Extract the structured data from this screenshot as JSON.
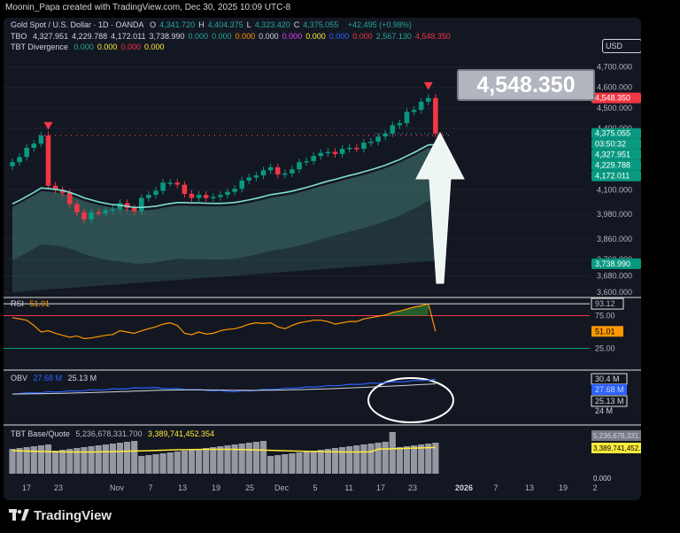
{
  "header": {
    "attribution": "Moonin_Papa created with TradingView.com, Dec 30, 2025 10:09 UTC-8"
  },
  "symbol": {
    "title": "Gold Spot / U.S. Dollar · 1D · OANDA",
    "ohlc": [
      {
        "k": "O",
        "v": "4,341.720"
      },
      {
        "k": "H",
        "v": "4,404.375"
      },
      {
        "k": "L",
        "v": "4,323.420"
      },
      {
        "k": "C",
        "v": "4,375.055"
      }
    ],
    "change": "+42.495 (+0.98%)"
  },
  "legend_tbo": {
    "name": "TBO",
    "values": [
      {
        "v": "4,327.951",
        "color": "#d1d4dc"
      },
      {
        "v": "4,229.788",
        "color": "#d1d4dc"
      },
      {
        "v": "4,172.011",
        "color": "#d1d4dc"
      },
      {
        "v": "3,738.990",
        "color": "#d1d4dc"
      },
      {
        "v": "0.000",
        "color": "#26a69a"
      },
      {
        "v": "0.000",
        "color": "#26a69a"
      },
      {
        "v": "0.000",
        "color": "#ff9800"
      },
      {
        "v": "0.000",
        "color": "#d1d4dc"
      },
      {
        "v": "0.000",
        "color": "#e040fb"
      },
      {
        "v": "0.000",
        "color": "#ffeb3b"
      },
      {
        "v": "0.000",
        "color": "#2962ff"
      },
      {
        "v": "0.000",
        "color": "#f23645"
      },
      {
        "v": "2,567.130",
        "color": "#26a69a"
      },
      {
        "v": "4,548.350",
        "color": "#f23645"
      }
    ]
  },
  "legend_div": {
    "name": "TBT Divergence",
    "values": [
      {
        "v": "0.000",
        "color": "#26a69a"
      },
      {
        "v": "0.000",
        "color": "#ffeb3b"
      },
      {
        "v": "0.000",
        "color": "#f23645"
      },
      {
        "v": "0.000",
        "color": "#ffeb3b"
      }
    ]
  },
  "currency": "USD",
  "annotation_price": "4,548.350",
  "price_axis": {
    "ticks": [
      "4,700.000",
      "4,600.000",
      "4,500.000",
      "4,400.000",
      "4,100.000",
      "3,980.000",
      "3,860.000",
      "3,760.000",
      "3,680.000",
      "3,600.000"
    ],
    "tags": [
      {
        "v": "4,548.350",
        "color": "#f23645"
      },
      {
        "v": "4,375.055",
        "color": "#089981"
      },
      {
        "v": "03:50:32",
        "color": "#089981"
      },
      {
        "v": "4,327.951",
        "color": "#089981"
      },
      {
        "v": "4,229.788",
        "color": "#089981"
      },
      {
        "v": "4,172.011",
        "color": "#089981"
      },
      {
        "v": "3,738.990",
        "color": "#089981"
      }
    ]
  },
  "rsi": {
    "label": "RSI",
    "value": "51.01",
    "axis": [
      "93.12",
      "75.00",
      "51.01",
      "25.00"
    ]
  },
  "obv": {
    "label": "OBV",
    "v1": "27.68 M",
    "v2": "25.13 M",
    "axis": [
      "30.4 M",
      "27.68 M",
      "25.13 M",
      "24 M"
    ]
  },
  "basequote": {
    "label": "TBT Base/Quote",
    "v1": "5,236,678,331.700",
    "v2": "3,389,741,452.354",
    "axis": [
      "5,236,678,331.700",
      "3,389,741,452.354",
      "0.000"
    ]
  },
  "time_axis": [
    "17",
    "23",
    "Nov",
    "7",
    "13",
    "19",
    "25",
    "Dec",
    "5",
    "11",
    "17",
    "23",
    "2026",
    "7",
    "13",
    "19",
    "2"
  ],
  "branding": "TradingView",
  "chart_data": {
    "type": "candlestick",
    "title": "Gold Spot / U.S. Dollar · 1D · OANDA",
    "ylim": [
      3600,
      4750
    ],
    "closes": [
      4235,
      4260,
      4305,
      4325,
      4365,
      4120,
      4100,
      4085,
      4030,
      3990,
      3955,
      3990,
      3985,
      4000,
      4005,
      4035,
      4010,
      3995,
      4060,
      4075,
      4095,
      4135,
      4135,
      4125,
      4080,
      4060,
      4075,
      4060,
      4065,
      4075,
      4090,
      4105,
      4145,
      4160,
      4170,
      4195,
      4210,
      4175,
      4180,
      4200,
      4235,
      4240,
      4265,
      4280,
      4285,
      4275,
      4300,
      4305,
      4300,
      4330,
      4335,
      4360,
      4375,
      4415,
      4425,
      4480,
      4490,
      4530,
      4548,
      4375
    ],
    "series": [
      {
        "name": "TBO",
        "values": [
          "4,327.951",
          "4,229.788",
          "4,172.011",
          "3,738.990"
        ]
      }
    ],
    "rsi_series": [
      72,
      70,
      68,
      60,
      50,
      52,
      48,
      45,
      42,
      44,
      40,
      41,
      43,
      45,
      46,
      52,
      50,
      48,
      52,
      55,
      58,
      62,
      64,
      60,
      48,
      46,
      50,
      47,
      48,
      52,
      54,
      55,
      58,
      62,
      64,
      63,
      64,
      58,
      55,
      60,
      64,
      66,
      68,
      68,
      66,
      62,
      64,
      66,
      66,
      70,
      72,
      74,
      76,
      80,
      82,
      85,
      88,
      90,
      93,
      51
    ]
  }
}
